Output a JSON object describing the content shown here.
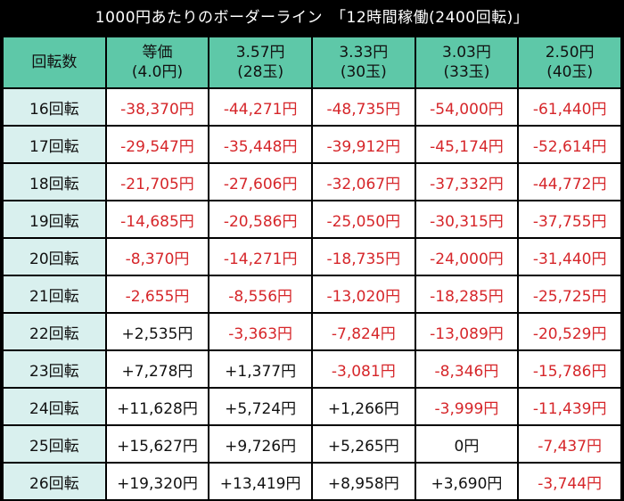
{
  "title": "1000円あたりのボーダーライン　「12時間稼働(2400回転)」",
  "colors": {
    "header_bg": "#5ec8a8",
    "rowhead_bg": "#d9f0ee",
    "negative": "#d6262a",
    "positive": "#111111"
  },
  "table": {
    "corner": "回転数",
    "columns": [
      {
        "line1": "等価",
        "line2": "(4.0円)"
      },
      {
        "line1": "3.57円",
        "line2": "(28玉)"
      },
      {
        "line1": "3.33円",
        "line2": "(30玉)"
      },
      {
        "line1": "3.03円",
        "line2": "(33玉)"
      },
      {
        "line1": "2.50円",
        "line2": "(40玉)"
      }
    ],
    "rows": [
      {
        "label": "16回転",
        "cells": [
          "-38,370円",
          "-44,271円",
          "-48,735円",
          "-54,000円",
          "-61,440円"
        ]
      },
      {
        "label": "17回転",
        "cells": [
          "-29,547円",
          "-35,448円",
          "-39,912円",
          "-45,174円",
          "-52,614円"
        ]
      },
      {
        "label": "18回転",
        "cells": [
          "-21,705円",
          "-27,606円",
          "-32,067円",
          "-37,332円",
          "-44,772円"
        ]
      },
      {
        "label": "19回転",
        "cells": [
          "-14,685円",
          "-20,586円",
          "-25,050円",
          "-30,315円",
          "-37,755円"
        ]
      },
      {
        "label": "20回転",
        "cells": [
          "-8,370円",
          "-14,271円",
          "-18,735円",
          "-24,000円",
          "-31,440円"
        ]
      },
      {
        "label": "21回転",
        "cells": [
          "-2,655円",
          "-8,556円",
          "-13,020円",
          "-18,285円",
          "-25,725円"
        ]
      },
      {
        "label": "22回転",
        "cells": [
          "+2,535円",
          "-3,363円",
          "-7,824円",
          "-13,089円",
          "-20,529円"
        ]
      },
      {
        "label": "23回転",
        "cells": [
          "+7,278円",
          "+1,377円",
          "-3,081円",
          "-8,346円",
          "-15,786円"
        ]
      },
      {
        "label": "24回転",
        "cells": [
          "+11,628円",
          "+5,724円",
          "+1,266円",
          "-3,999円",
          "-11,439円"
        ]
      },
      {
        "label": "25回転",
        "cells": [
          "+15,627円",
          "+9,726円",
          "+5,265円",
          "0円",
          "-7,437円"
        ]
      },
      {
        "label": "26回転",
        "cells": [
          "+19,320円",
          "+13,419円",
          "+8,958円",
          "+3,690円",
          "-3,744円"
        ]
      }
    ]
  }
}
